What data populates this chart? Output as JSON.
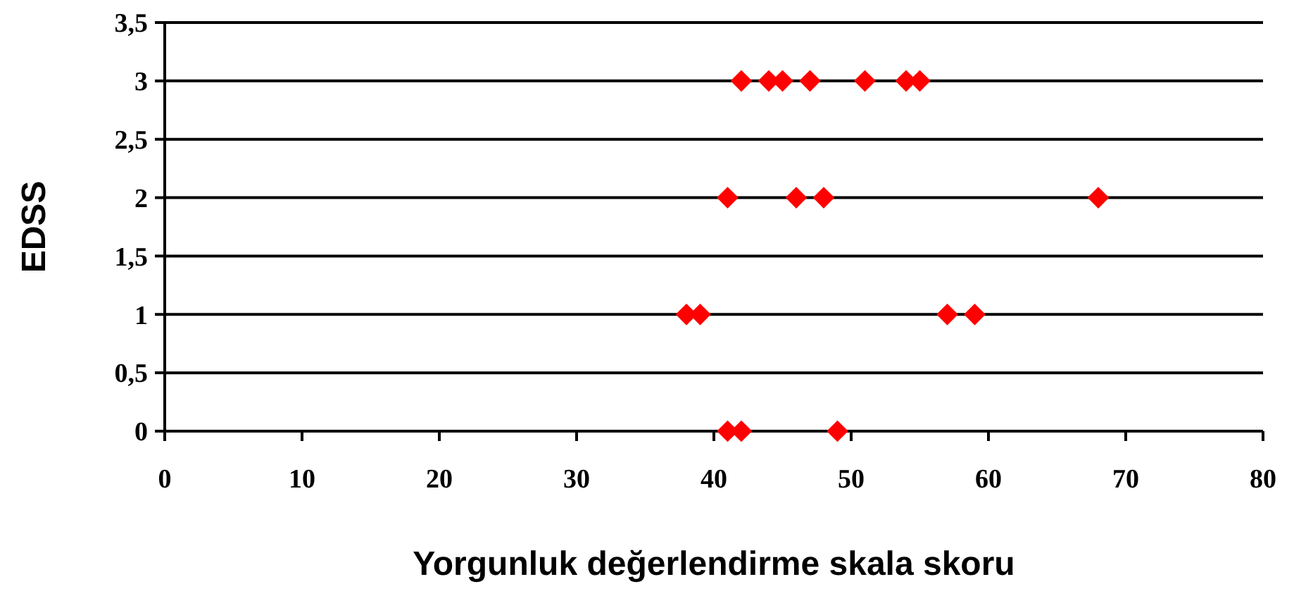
{
  "chart_data": {
    "type": "scatter",
    "xlabel": "Yorgunluk değerlendirme skala skoru",
    "ylabel": "EDSS",
    "x": [
      42,
      44,
      45,
      47,
      51,
      54,
      55,
      41,
      46,
      48,
      68,
      38,
      39,
      57,
      59,
      41,
      42,
      49
    ],
    "values": [
      3,
      3,
      3,
      3,
      3,
      3,
      3,
      2,
      2,
      2,
      2,
      1,
      1,
      1,
      1,
      0,
      0,
      0
    ],
    "color": "#ff0000",
    "marker": "diamond",
    "xlim": [
      0,
      80
    ],
    "xticks": [
      0,
      10,
      20,
      30,
      40,
      50,
      60,
      70,
      80
    ],
    "ylim": [
      0,
      3.5
    ],
    "yticks": [
      {
        "value": 0,
        "label": "0"
      },
      {
        "value": 0.5,
        "label": "0,5"
      },
      {
        "value": 1,
        "label": "1"
      },
      {
        "value": 1.5,
        "label": "1,5"
      },
      {
        "value": 2,
        "label": "2"
      },
      {
        "value": 2.5,
        "label": "2,5"
      },
      {
        "value": 3,
        "label": "3"
      },
      {
        "value": 3.5,
        "label": "3,5"
      }
    ],
    "grid": "y"
  }
}
